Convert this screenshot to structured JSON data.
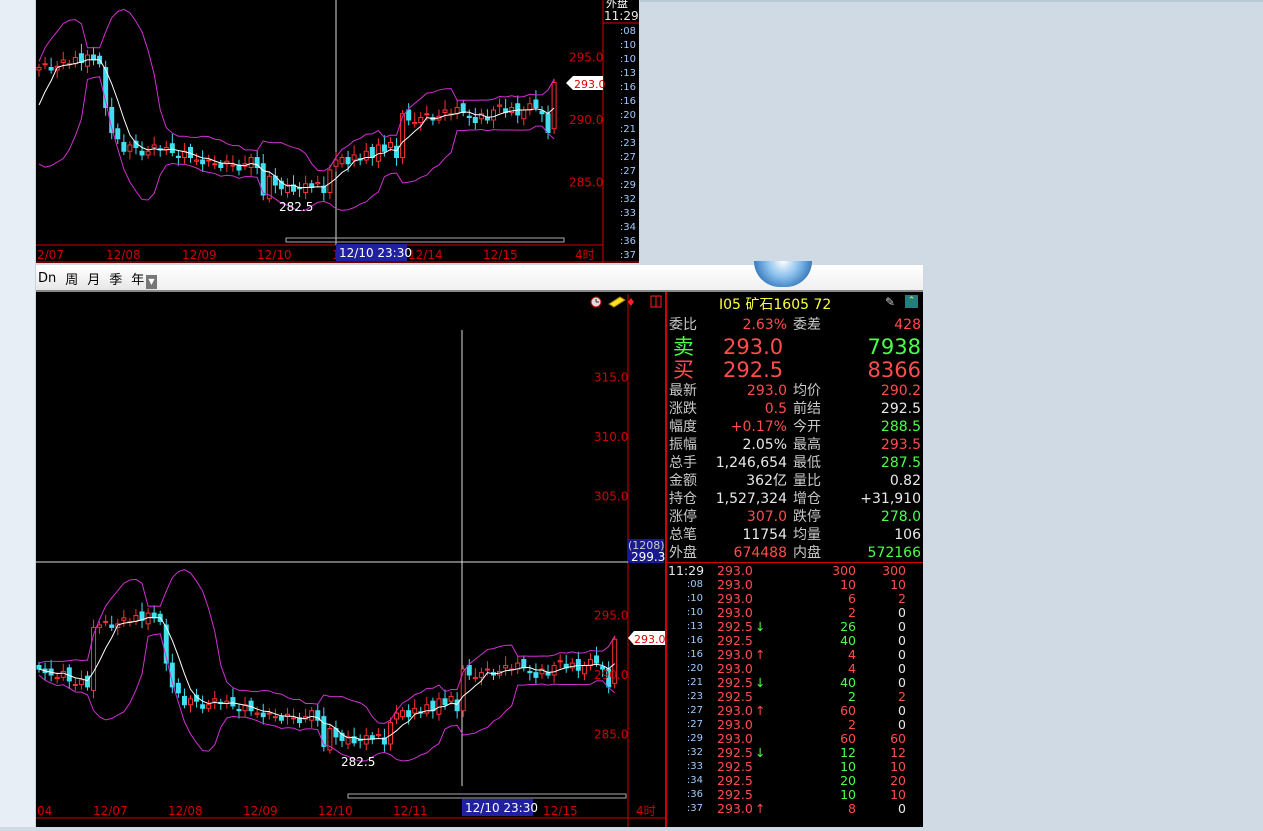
{
  "top_chart": {
    "axis_labels": [
      "295.0",
      "290.0",
      "285.0"
    ],
    "axis_values": [
      295,
      290,
      285
    ],
    "date_labels": [
      "2/07",
      "12/08",
      "12/09",
      "12/10",
      "1",
      "12/14",
      "12/15",
      "4时"
    ],
    "cursor_date": "12/10 23:30",
    "low_label": "282.5",
    "last_price": "293.0",
    "side_header": "外盘",
    "side_time": "11:29",
    "side_ticks": [
      ":08",
      ":10",
      ":10",
      ":13",
      ":16",
      ":16",
      ":20",
      ":21",
      ":23",
      ":27",
      ":27",
      ":29",
      ":32",
      ":33",
      ":34",
      ":36",
      ":37"
    ]
  },
  "toolbar": {
    "items": [
      "Dn",
      "周",
      "月",
      "季",
      "年"
    ]
  },
  "bottom_chart": {
    "axis_labels": [
      "315.0",
      "310.0",
      "305.0",
      "295.0",
      "290.0",
      "285.0"
    ],
    "axis_values": [
      315,
      310,
      305,
      295,
      290,
      285
    ],
    "cursor_count": "(1208)",
    "cursor_price": "299.3",
    "date_labels": [
      "04",
      "12/07",
      "12/08",
      "12/09",
      "12/10",
      "12/11",
      "12/15",
      "4时"
    ],
    "cursor_date": "12/10 23:30",
    "low_label": "282.5",
    "last_price": "293.0",
    "icons": [
      "clock-icon",
      "ticket-icon",
      "alarm-icon",
      "layout-icon"
    ]
  },
  "quote": {
    "header": "I05  矿石1605  72",
    "weibi": {
      "label": "委比",
      "value": "2.63%",
      "label2": "委差",
      "value2": "428"
    },
    "sell": {
      "label": "卖",
      "price": "293.0",
      "vol": "7938"
    },
    "buy": {
      "label": "买",
      "price": "292.5",
      "vol": "8366"
    },
    "rows": [
      {
        "l1": "最新",
        "v1": "293.0",
        "c1": "red",
        "l2": "均价",
        "v2": "290.2",
        "c2": "red"
      },
      {
        "l1": "涨跌",
        "v1": "0.5",
        "c1": "red",
        "l2": "前结",
        "v2": "292.5",
        "c2": "white"
      },
      {
        "l1": "幅度",
        "v1": "+0.17%",
        "c1": "red",
        "l2": "今开",
        "v2": "288.5",
        "c2": "green"
      },
      {
        "l1": "振幅",
        "v1": "2.05%",
        "c1": "white",
        "l2": "最高",
        "v2": "293.5",
        "c2": "red"
      },
      {
        "l1": "总手",
        "v1": "1,246,654",
        "c1": "white",
        "l2": "最低",
        "v2": "287.5",
        "c2": "green"
      },
      {
        "l1": "金额",
        "v1": "362亿",
        "c1": "white",
        "l2": "量比",
        "v2": "0.82",
        "c2": "white"
      },
      {
        "l1": "持仓",
        "v1": "1,527,324",
        "c1": "white",
        "l2": "增仓",
        "v2": "+31,910",
        "c2": "white"
      },
      {
        "l1": "涨停",
        "v1": "307.0",
        "c1": "red",
        "l2": "跌停",
        "v2": "278.0",
        "c2": "green"
      },
      {
        "l1": "总笔",
        "v1": "11754",
        "c1": "white",
        "l2": "均量",
        "v2": "106",
        "c2": "white"
      },
      {
        "l1": "外盘",
        "v1": "674488",
        "c1": "red",
        "l2": "内盘",
        "v2": "572166",
        "c2": "green"
      }
    ]
  },
  "ticks": [
    {
      "t": "11:29",
      "p": "293.0",
      "a": "",
      "v": "300",
      "vc": "red",
      "o": "300",
      "oc": "red"
    },
    {
      "t": ":08",
      "p": "293.0",
      "a": "",
      "v": "10",
      "vc": "red",
      "o": "10",
      "oc": "red"
    },
    {
      "t": ":10",
      "p": "293.0",
      "a": "",
      "v": "6",
      "vc": "red",
      "o": "2",
      "oc": "red"
    },
    {
      "t": ":10",
      "p": "293.0",
      "a": "",
      "v": "2",
      "vc": "red",
      "o": "0",
      "oc": "white"
    },
    {
      "t": ":13",
      "p": "292.5",
      "a": "↓",
      "v": "26",
      "vc": "green",
      "o": "0",
      "oc": "white"
    },
    {
      "t": ":16",
      "p": "292.5",
      "a": "",
      "v": "40",
      "vc": "green",
      "o": "0",
      "oc": "white"
    },
    {
      "t": ":16",
      "p": "293.0",
      "a": "↑",
      "v": "4",
      "vc": "red",
      "o": "0",
      "oc": "white"
    },
    {
      "t": ":20",
      "p": "293.0",
      "a": "",
      "v": "4",
      "vc": "red",
      "o": "0",
      "oc": "white"
    },
    {
      "t": ":21",
      "p": "292.5",
      "a": "↓",
      "v": "40",
      "vc": "green",
      "o": "0",
      "oc": "white"
    },
    {
      "t": ":23",
      "p": "292.5",
      "a": "",
      "v": "2",
      "vc": "green",
      "o": "2",
      "oc": "red"
    },
    {
      "t": ":27",
      "p": "293.0",
      "a": "↑",
      "v": "60",
      "vc": "red",
      "o": "0",
      "oc": "white"
    },
    {
      "t": ":27",
      "p": "293.0",
      "a": "",
      "v": "2",
      "vc": "red",
      "o": "0",
      "oc": "white"
    },
    {
      "t": ":29",
      "p": "293.0",
      "a": "",
      "v": "60",
      "vc": "red",
      "o": "60",
      "oc": "red"
    },
    {
      "t": ":32",
      "p": "292.5",
      "a": "↓",
      "v": "12",
      "vc": "green",
      "o": "12",
      "oc": "red"
    },
    {
      "t": ":33",
      "p": "292.5",
      "a": "",
      "v": "10",
      "vc": "green",
      "o": "10",
      "oc": "red"
    },
    {
      "t": ":34",
      "p": "292.5",
      "a": "",
      "v": "20",
      "vc": "green",
      "o": "20",
      "oc": "red"
    },
    {
      "t": ":36",
      "p": "292.5",
      "a": "",
      "v": "10",
      "vc": "green",
      "o": "10",
      "oc": "red"
    },
    {
      "t": ":37",
      "p": "293.0",
      "a": "↑",
      "v": "8",
      "vc": "red",
      "o": "0",
      "oc": "white"
    }
  ],
  "colors": {
    "up": "#ff3030",
    "down": "#40e0f0",
    "ma": "#ffffff",
    "band": "#d030d0",
    "axis": "#d00000"
  },
  "chart_data": {
    "type": "candlestick",
    "closes": [
      290.5,
      290.2,
      290.0,
      289.8,
      290.3,
      289.5,
      289.2,
      289.6,
      289.0,
      294.0,
      294.2,
      294.5,
      294.0,
      294.3,
      294.8,
      294.5,
      295.0,
      294.6,
      295.2,
      294.8,
      294.5,
      291.0,
      289.0,
      288.5,
      287.5,
      288.0,
      287.8,
      287.2,
      287.5,
      288.0,
      287.6,
      287.8,
      287.4,
      287.0,
      287.5,
      287.0,
      286.8,
      286.5,
      286.8,
      286.5,
      286.2,
      286.7,
      286.4,
      286.0,
      286.5,
      287.0,
      286.2,
      284.0,
      285.5,
      284.8,
      284.5,
      284.8,
      284.3,
      284.5,
      284.9,
      284.6,
      285.0,
      284.2,
      286.0,
      286.8,
      287.0,
      286.5,
      287.2,
      286.8,
      287.5,
      287.0,
      288.0,
      287.5,
      288.2,
      287.0,
      290.5,
      290.0,
      289.8,
      290.2,
      290.5,
      290.0,
      290.3,
      290.8,
      290.5,
      291.0,
      290.6,
      290.2,
      289.8,
      290.5,
      290.0,
      290.8,
      291.2,
      290.6,
      291.0,
      290.4,
      290.8,
      291.3,
      291.0,
      290.5,
      289.0,
      293.0
    ]
  }
}
